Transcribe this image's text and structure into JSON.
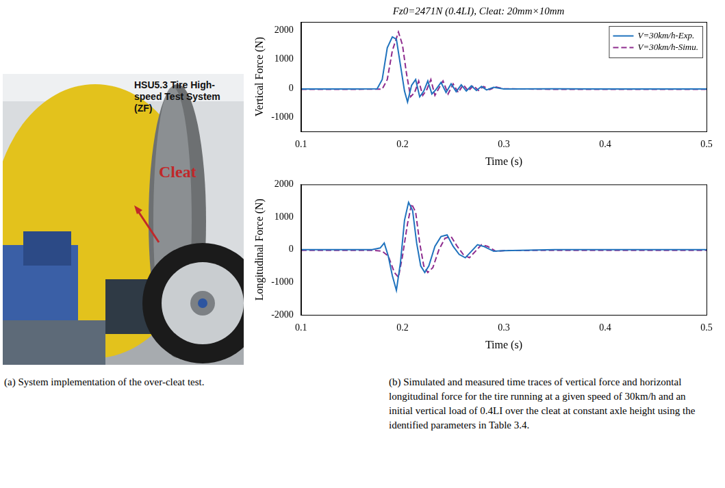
{
  "photo": {
    "label": "HSU5.3 Tire High-speed Test System (ZF)",
    "arrow_label": "Cleat",
    "caption": "(a) System implementation of the over-cleat test."
  },
  "caption_b": "(b) Simulated and measured time traces of vertical force and horizontal longitudinal force for the tire running at a given speed of 30km/h and an initial vertical load of 0.4LI over the cleat at constant axle height using the identified parameters in Table 3.4.",
  "chart_data": [
    {
      "type": "line",
      "title": "Fz0=2471N (0.4LI), Cleat: 20mm×10mm",
      "xlabel": "Time (s)",
      "ylabel": "Vertical Force (N)",
      "xlim": [
        0.1,
        0.5
      ],
      "xticks": [
        0.1,
        0.2,
        0.3,
        0.4,
        0.5
      ],
      "ylim": [
        -1500,
        2300
      ],
      "yticks": [
        -1000,
        0,
        1000,
        2000
      ],
      "grid": false,
      "legend": "upper right",
      "series": [
        {
          "name": "V=30km/h-Exp.",
          "color": "#1f72bd",
          "line_style": "solid",
          "marker": "none",
          "x": [
            0.1,
            0.15,
            0.175,
            0.18,
            0.185,
            0.19,
            0.194,
            0.198,
            0.202,
            0.205,
            0.209,
            0.213,
            0.217,
            0.221,
            0.225,
            0.229,
            0.233,
            0.238,
            0.243,
            0.248,
            0.253,
            0.258,
            0.263,
            0.268,
            0.273,
            0.278,
            0.283,
            0.29,
            0.3,
            0.35,
            0.4,
            0.45,
            0.5
          ],
          "values": [
            -30,
            -30,
            -20,
            300,
            1400,
            1780,
            1700,
            800,
            -100,
            -480,
            100,
            300,
            -300,
            -100,
            250,
            -200,
            -50,
            200,
            -150,
            150,
            -120,
            120,
            -100,
            80,
            -80,
            60,
            -60,
            30,
            -30,
            -20,
            -30,
            -30,
            -30
          ]
        },
        {
          "name": "V=30km/h-Simu.",
          "color": "#8e2c8e",
          "line_style": "dashed",
          "marker": "none",
          "x": [
            0.1,
            0.15,
            0.18,
            0.185,
            0.19,
            0.196,
            0.2,
            0.204,
            0.208,
            0.212,
            0.216,
            0.22,
            0.224,
            0.228,
            0.232,
            0.236,
            0.24,
            0.245,
            0.25,
            0.255,
            0.26,
            0.265,
            0.27,
            0.275,
            0.28,
            0.286,
            0.292,
            0.3,
            0.35,
            0.4,
            0.5
          ],
          "values": [
            -40,
            -40,
            -30,
            300,
            1300,
            1950,
            1500,
            500,
            -300,
            -150,
            250,
            -250,
            -50,
            300,
            -250,
            0,
            250,
            -200,
            150,
            -150,
            120,
            -100,
            90,
            -80,
            60,
            -50,
            40,
            -20,
            -40,
            -40,
            -40
          ]
        }
      ]
    },
    {
      "type": "line",
      "xlabel": "Time (s)",
      "ylabel": "Longitudinal Force (N)",
      "xlim": [
        0.1,
        0.5
      ],
      "xticks": [
        0.1,
        0.2,
        0.3,
        0.4,
        0.5
      ],
      "ylim": [
        -2000,
        2000
      ],
      "yticks": [
        -2000,
        -1000,
        0,
        1000,
        2000
      ],
      "grid": false,
      "legend": false,
      "series": [
        {
          "name": "V=30km/h-Exp.",
          "color": "#1f72bd",
          "line_style": "solid",
          "marker": "none",
          "x": [
            0.1,
            0.17,
            0.178,
            0.182,
            0.186,
            0.19,
            0.194,
            0.198,
            0.202,
            0.206,
            0.21,
            0.214,
            0.218,
            0.222,
            0.226,
            0.232,
            0.238,
            0.244,
            0.25,
            0.256,
            0.262,
            0.268,
            0.274,
            0.28,
            0.29,
            0.3,
            0.35,
            0.4,
            0.5
          ],
          "values": [
            0,
            0,
            50,
            200,
            -200,
            -800,
            -1250,
            -400,
            900,
            1450,
            1200,
            200,
            -500,
            -700,
            -500,
            100,
            400,
            450,
            100,
            -150,
            -250,
            -50,
            150,
            100,
            -50,
            -30,
            0,
            0,
            0
          ]
        },
        {
          "name": "V=30km/h-Simu.",
          "color": "#8e2c8e",
          "line_style": "dashed",
          "marker": "none",
          "x": [
            0.1,
            0.17,
            0.18,
            0.186,
            0.192,
            0.196,
            0.2,
            0.205,
            0.209,
            0.213,
            0.217,
            0.221,
            0.225,
            0.23,
            0.236,
            0.242,
            0.248,
            0.254,
            0.26,
            0.266,
            0.272,
            0.278,
            0.284,
            0.292,
            0.3,
            0.35,
            0.5
          ],
          "values": [
            -20,
            -20,
            -50,
            -200,
            -700,
            -850,
            -200,
            800,
            1400,
            1150,
            200,
            -500,
            -700,
            -550,
            0,
            350,
            400,
            100,
            -150,
            -250,
            -50,
            150,
            100,
            -50,
            -30,
            -20,
            -20
          ]
        }
      ]
    }
  ]
}
